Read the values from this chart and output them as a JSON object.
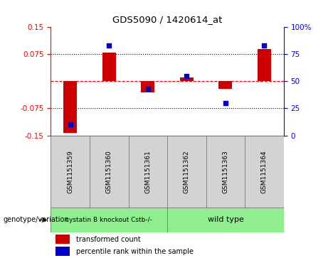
{
  "title": "GDS5090 / 1420614_at",
  "samples": [
    "GSM1151359",
    "GSM1151360",
    "GSM1151361",
    "GSM1151362",
    "GSM1151363",
    "GSM1151364"
  ],
  "red_values": [
    -0.143,
    0.08,
    -0.03,
    0.01,
    -0.02,
    0.09
  ],
  "blue_percentiles": [
    10,
    83,
    43,
    55,
    30,
    83
  ],
  "ylim_left": [
    -0.15,
    0.15
  ],
  "ylim_right": [
    0,
    100
  ],
  "left_yticks": [
    0.15,
    0.075,
    -0.075,
    -0.15
  ],
  "left_yticklabels": [
    "0.15",
    "0.075",
    "-0.075",
    "-0.15"
  ],
  "right_yticks": [
    0,
    25,
    50,
    75,
    100
  ],
  "right_yticklabels": [
    "0",
    "25",
    "50",
    "75",
    "100%"
  ],
  "group1_label": "cystatin B knockout Cstb-/-",
  "group2_label": "wild type",
  "group1_color": "#90EE90",
  "group2_color": "#90EE90",
  "bar_color": "#CC0000",
  "dot_color": "#0000CC",
  "legend_red": "transformed count",
  "legend_blue": "percentile rank within the sample",
  "genotype_label": "genotype/variation",
  "bar_width": 0.35,
  "sample_box_color": "#D3D3D3",
  "bg_color": "#ffffff"
}
